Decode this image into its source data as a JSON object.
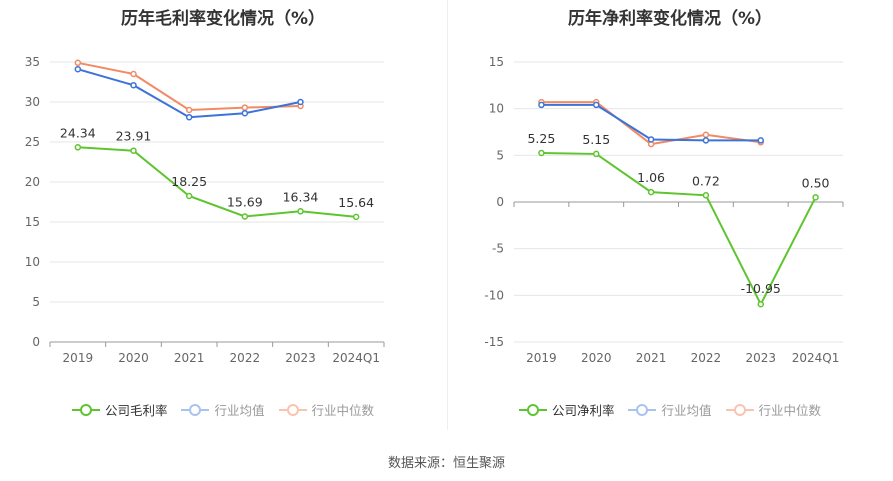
{
  "source": "数据来源：恒生聚源",
  "colors": {
    "company": "#5ec42f",
    "industry_avg": "#3b73d9",
    "industry_median": "#f28a63",
    "grid": "#e6e6e6",
    "axis": "#999999",
    "tick": "#666666"
  },
  "charts": [
    {
      "id": "gross",
      "title": "历年毛利率变化情况（%）",
      "legend": [
        "公司毛利率",
        "行业均值",
        "行业中位数"
      ]
    },
    {
      "id": "net",
      "title": "历年净利率变化情况（%）",
      "legend": [
        "公司净利率",
        "行业均值",
        "行业中位数"
      ]
    }
  ],
  "chart_data": [
    {
      "type": "line",
      "title": "历年毛利率变化情况（%）",
      "categories": [
        "2019",
        "2020",
        "2021",
        "2022",
        "2023",
        "2024Q1"
      ],
      "ylim": [
        0,
        35
      ],
      "yticks": [
        "0",
        "5",
        "10",
        "15",
        "20",
        "25",
        "30",
        "35"
      ],
      "ytick_values": [
        0,
        5,
        10,
        15,
        20,
        25,
        30,
        35
      ],
      "grid": true,
      "legend_position": "bottom",
      "series": [
        {
          "name": "公司毛利率",
          "values": [
            24.34,
            23.91,
            18.25,
            15.69,
            16.34,
            15.64
          ],
          "labels": [
            "24.34",
            "23.91",
            "18.25",
            "15.69",
            "16.34",
            "15.64"
          ]
        },
        {
          "name": "行业均值",
          "values": [
            34.1,
            32.1,
            28.1,
            28.6,
            30.0,
            null
          ]
        },
        {
          "name": "行业中位数",
          "values": [
            34.9,
            33.5,
            29.0,
            29.3,
            29.5,
            null
          ]
        }
      ]
    },
    {
      "type": "line",
      "title": "历年净利率变化情况（%）",
      "categories": [
        "2019",
        "2020",
        "2021",
        "2022",
        "2023",
        "2024Q1"
      ],
      "ylim": [
        -15,
        15
      ],
      "yticks": [
        "-15",
        "-10",
        "-5",
        "0",
        "5",
        "10",
        "15"
      ],
      "ytick_values": [
        -15,
        -10,
        -5,
        0,
        5,
        10,
        15
      ],
      "grid": true,
      "legend_position": "bottom",
      "series": [
        {
          "name": "公司净利率",
          "values": [
            5.25,
            5.15,
            1.06,
            0.72,
            -10.95,
            0.5
          ],
          "labels": [
            "5.25",
            "5.15",
            "1.06",
            "0.72",
            "-10.95",
            "0.50"
          ]
        },
        {
          "name": "行业均值",
          "values": [
            10.4,
            10.4,
            6.7,
            6.6,
            6.6,
            null
          ]
        },
        {
          "name": "行业中位数",
          "values": [
            10.7,
            10.7,
            6.2,
            7.2,
            6.4,
            null
          ]
        }
      ]
    }
  ]
}
